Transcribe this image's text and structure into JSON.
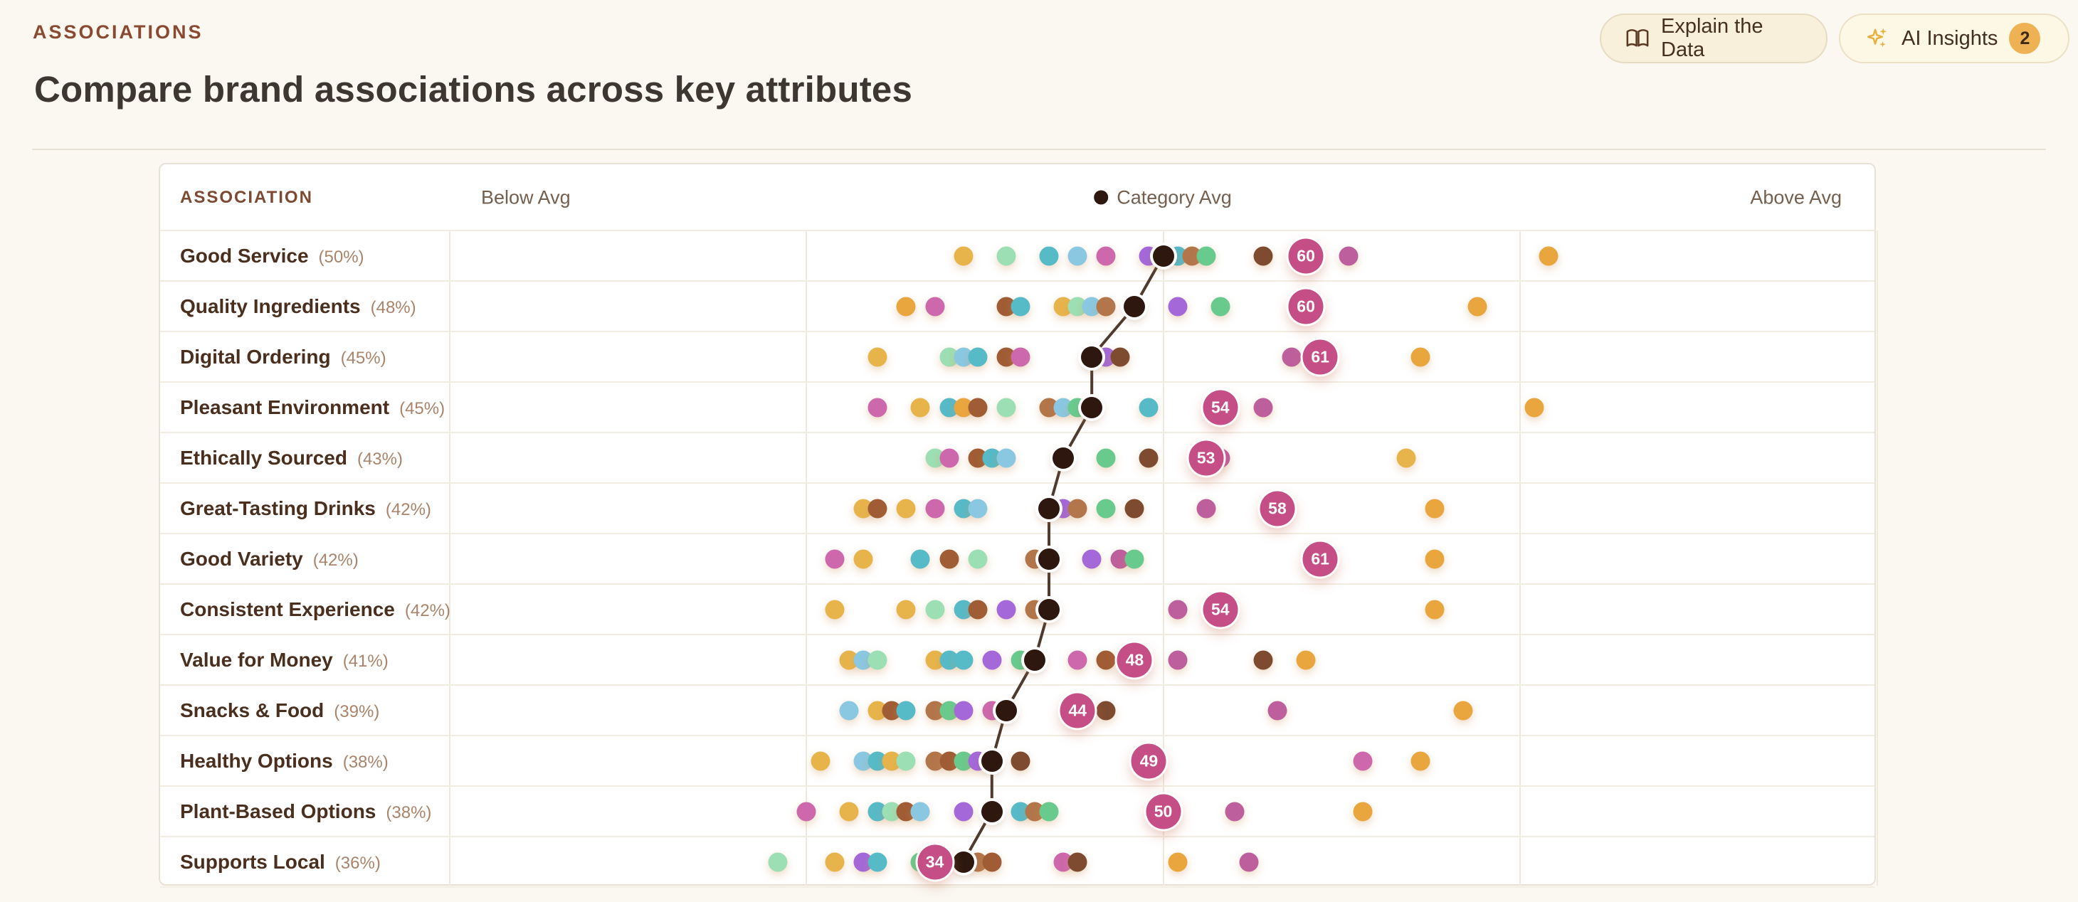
{
  "header": {
    "eyebrow": "ASSOCIATIONS",
    "title": "Compare brand associations across key attributes"
  },
  "toolbar": {
    "explain_button": {
      "label": "Explain the Data",
      "icon": "book-open-icon"
    },
    "ai_insights_button": {
      "label": "AI Insights",
      "icon": "sparkles-icon",
      "badge_count": "2"
    }
  },
  "chart_data": {
    "type": "scatter",
    "subtype": "dot-plot-by-row",
    "column_header": "ASSOCIATION",
    "axis_labels": {
      "left": "Below Avg",
      "center": "Category Avg",
      "right": "Above Avg"
    },
    "x_range": [
      0,
      100
    ],
    "gridlines_pct": [
      0,
      25,
      50,
      75,
      100
    ],
    "grid": true,
    "legend_position": "top-center",
    "palette": {
      "gold": {
        "hex": "#E7B44C",
        "pattern": "none"
      },
      "orange": {
        "hex": "#EAA63E",
        "pattern": "none"
      },
      "mint": {
        "hex": "#9DDFB4",
        "pattern": "none"
      },
      "teal": {
        "hex": "#57BAC7",
        "pattern": "none"
      },
      "sky": {
        "hex": "#8AC8E2",
        "pattern": "none"
      },
      "purple": {
        "hex": "#A468D9",
        "pattern": "none"
      },
      "green": {
        "hex": "#69CA8D",
        "pattern": "none"
      },
      "brown": {
        "hex": "#A05C35",
        "pattern": "none"
      },
      "brownSpeck": {
        "hex": "#B3754A",
        "pattern": "speck"
      },
      "darkbrown": {
        "hex": "#7E4B30",
        "pattern": "none"
      },
      "orchid": {
        "hex": "#CD68AC",
        "pattern": "dots"
      },
      "magenta": {
        "hex": "#BE5F9D",
        "pattern": "hatch"
      },
      "black": {
        "hex": "#2D170E",
        "pattern": "none"
      },
      "berry": {
        "hex": "#C44E85",
        "pattern": "none"
      }
    },
    "trend_line_color": "#4F3A2E",
    "rows": [
      {
        "label": "Good Service",
        "pct_label": "(50%)",
        "category_avg": 50,
        "focal": 60,
        "dots": [
          {
            "v": 36,
            "c": "gold"
          },
          {
            "v": 39,
            "c": "mint"
          },
          {
            "v": 42,
            "c": "teal"
          },
          {
            "v": 44,
            "c": "sky"
          },
          {
            "v": 46,
            "c": "orchid"
          },
          {
            "v": 49,
            "c": "purple"
          },
          {
            "v": 51,
            "c": "teal"
          },
          {
            "v": 52,
            "c": "brownSpeck"
          },
          {
            "v": 53,
            "c": "green"
          },
          {
            "v": 57,
            "c": "darkbrown"
          },
          {
            "v": 63,
            "c": "magenta"
          },
          {
            "v": 77,
            "c": "orange"
          }
        ]
      },
      {
        "label": "Quality Ingredients",
        "pct_label": "(48%)",
        "category_avg": 48,
        "focal": 60,
        "dots": [
          {
            "v": 32,
            "c": "orange"
          },
          {
            "v": 34,
            "c": "orchid"
          },
          {
            "v": 39,
            "c": "brown"
          },
          {
            "v": 40,
            "c": "teal"
          },
          {
            "v": 43,
            "c": "gold"
          },
          {
            "v": 44,
            "c": "mint"
          },
          {
            "v": 45,
            "c": "sky"
          },
          {
            "v": 46,
            "c": "brownSpeck"
          },
          {
            "v": 51,
            "c": "purple"
          },
          {
            "v": 54,
            "c": "green"
          },
          {
            "v": 72,
            "c": "orange"
          }
        ]
      },
      {
        "label": "Digital Ordering",
        "pct_label": "(45%)",
        "category_avg": 45,
        "focal": 61,
        "dots": [
          {
            "v": 30,
            "c": "gold"
          },
          {
            "v": 35,
            "c": "mint"
          },
          {
            "v": 36,
            "c": "sky"
          },
          {
            "v": 37,
            "c": "teal"
          },
          {
            "v": 39,
            "c": "brown"
          },
          {
            "v": 40,
            "c": "orchid"
          },
          {
            "v": 46,
            "c": "purple"
          },
          {
            "v": 47,
            "c": "darkbrown"
          },
          {
            "v": 59,
            "c": "magenta"
          },
          {
            "v": 68,
            "c": "orange"
          }
        ]
      },
      {
        "label": "Pleasant Environment",
        "pct_label": "(45%)",
        "category_avg": 45,
        "focal": 54,
        "dots": [
          {
            "v": 30,
            "c": "orchid"
          },
          {
            "v": 33,
            "c": "gold"
          },
          {
            "v": 35,
            "c": "teal"
          },
          {
            "v": 36,
            "c": "orange"
          },
          {
            "v": 37,
            "c": "brown"
          },
          {
            "v": 39,
            "c": "mint"
          },
          {
            "v": 42,
            "c": "brownSpeck"
          },
          {
            "v": 43,
            "c": "sky"
          },
          {
            "v": 44,
            "c": "green"
          },
          {
            "v": 49,
            "c": "teal"
          },
          {
            "v": 57,
            "c": "magenta"
          },
          {
            "v": 76,
            "c": "orange"
          }
        ]
      },
      {
        "label": "Ethically Sourced",
        "pct_label": "(43%)",
        "category_avg": 43,
        "focal": 53,
        "dots": [
          {
            "v": 34,
            "c": "mint"
          },
          {
            "v": 35,
            "c": "orchid"
          },
          {
            "v": 37,
            "c": "brown"
          },
          {
            "v": 38,
            "c": "teal"
          },
          {
            "v": 39,
            "c": "sky"
          },
          {
            "v": 46,
            "c": "green"
          },
          {
            "v": 49,
            "c": "darkbrown"
          },
          {
            "v": 54,
            "c": "magenta"
          },
          {
            "v": 67,
            "c": "gold"
          }
        ]
      },
      {
        "label": "Great-Tasting Drinks",
        "pct_label": "(42%)",
        "category_avg": 42,
        "focal": 58,
        "dots": [
          {
            "v": 29,
            "c": "gold"
          },
          {
            "v": 30,
            "c": "brown"
          },
          {
            "v": 32,
            "c": "gold"
          },
          {
            "v": 34,
            "c": "orchid"
          },
          {
            "v": 36,
            "c": "teal"
          },
          {
            "v": 37,
            "c": "sky"
          },
          {
            "v": 43,
            "c": "purple"
          },
          {
            "v": 44,
            "c": "brownSpeck"
          },
          {
            "v": 46,
            "c": "green"
          },
          {
            "v": 48,
            "c": "darkbrown"
          },
          {
            "v": 53,
            "c": "magenta"
          },
          {
            "v": 69,
            "c": "orange"
          }
        ]
      },
      {
        "label": "Good Variety",
        "pct_label": "(42%)",
        "category_avg": 42,
        "focal": 61,
        "dots": [
          {
            "v": 27,
            "c": "orchid"
          },
          {
            "v": 29,
            "c": "gold"
          },
          {
            "v": 33,
            "c": "teal"
          },
          {
            "v": 35,
            "c": "brown"
          },
          {
            "v": 37,
            "c": "mint"
          },
          {
            "v": 41,
            "c": "brownSpeck"
          },
          {
            "v": 45,
            "c": "purple"
          },
          {
            "v": 47,
            "c": "magenta"
          },
          {
            "v": 48,
            "c": "green"
          },
          {
            "v": 69,
            "c": "orange"
          }
        ]
      },
      {
        "label": "Consistent Experience",
        "pct_label": "(42%)",
        "category_avg": 42,
        "focal": 54,
        "dots": [
          {
            "v": 27,
            "c": "gold"
          },
          {
            "v": 32,
            "c": "gold"
          },
          {
            "v": 34,
            "c": "mint"
          },
          {
            "v": 36,
            "c": "teal"
          },
          {
            "v": 37,
            "c": "brown"
          },
          {
            "v": 39,
            "c": "purple"
          },
          {
            "v": 41,
            "c": "brownSpeck"
          },
          {
            "v": 51,
            "c": "magenta"
          },
          {
            "v": 69,
            "c": "orange"
          }
        ]
      },
      {
        "label": "Value for Money",
        "pct_label": "(41%)",
        "category_avg": 41,
        "focal": 48,
        "dots": [
          {
            "v": 28,
            "c": "gold"
          },
          {
            "v": 29,
            "c": "sky"
          },
          {
            "v": 30,
            "c": "mint"
          },
          {
            "v": 34,
            "c": "gold"
          },
          {
            "v": 35,
            "c": "teal"
          },
          {
            "v": 36,
            "c": "teal"
          },
          {
            "v": 38,
            "c": "purple"
          },
          {
            "v": 40,
            "c": "green"
          },
          {
            "v": 44,
            "c": "orchid"
          },
          {
            "v": 46,
            "c": "brown"
          },
          {
            "v": 51,
            "c": "magenta"
          },
          {
            "v": 57,
            "c": "darkbrown"
          },
          {
            "v": 60,
            "c": "orange"
          }
        ]
      },
      {
        "label": "Snacks & Food",
        "pct_label": "(39%)",
        "category_avg": 39,
        "focal": 44,
        "dots": [
          {
            "v": 28,
            "c": "sky"
          },
          {
            "v": 30,
            "c": "gold"
          },
          {
            "v": 31,
            "c": "brown"
          },
          {
            "v": 32,
            "c": "teal"
          },
          {
            "v": 34,
            "c": "brownSpeck"
          },
          {
            "v": 35,
            "c": "green"
          },
          {
            "v": 36,
            "c": "purple"
          },
          {
            "v": 38,
            "c": "orchid"
          },
          {
            "v": 46,
            "c": "darkbrown"
          },
          {
            "v": 58,
            "c": "magenta"
          },
          {
            "v": 71,
            "c": "orange"
          }
        ]
      },
      {
        "label": "Healthy Options",
        "pct_label": "(38%)",
        "category_avg": 38,
        "focal": 49,
        "dots": [
          {
            "v": 26,
            "c": "gold"
          },
          {
            "v": 29,
            "c": "sky"
          },
          {
            "v": 30,
            "c": "teal"
          },
          {
            "v": 31,
            "c": "gold"
          },
          {
            "v": 32,
            "c": "mint"
          },
          {
            "v": 34,
            "c": "brownSpeck"
          },
          {
            "v": 35,
            "c": "brown"
          },
          {
            "v": 36,
            "c": "green"
          },
          {
            "v": 37,
            "c": "purple"
          },
          {
            "v": 40,
            "c": "darkbrown"
          },
          {
            "v": 64,
            "c": "orchid"
          },
          {
            "v": 68,
            "c": "orange"
          }
        ]
      },
      {
        "label": "Plant-Based Options",
        "pct_label": "(38%)",
        "category_avg": 38,
        "focal": 50,
        "dots": [
          {
            "v": 25,
            "c": "orchid"
          },
          {
            "v": 28,
            "c": "gold"
          },
          {
            "v": 30,
            "c": "teal"
          },
          {
            "v": 31,
            "c": "mint"
          },
          {
            "v": 32,
            "c": "brown"
          },
          {
            "v": 33,
            "c": "sky"
          },
          {
            "v": 36,
            "c": "purple"
          },
          {
            "v": 40,
            "c": "teal"
          },
          {
            "v": 41,
            "c": "brownSpeck"
          },
          {
            "v": 42,
            "c": "green"
          },
          {
            "v": 55,
            "c": "magenta"
          },
          {
            "v": 64,
            "c": "orange"
          }
        ]
      },
      {
        "label": "Supports Local",
        "pct_label": "(36%)",
        "category_avg": 36,
        "focal": 34,
        "dots": [
          {
            "v": 23,
            "c": "mint"
          },
          {
            "v": 27,
            "c": "gold"
          },
          {
            "v": 29,
            "c": "purple"
          },
          {
            "v": 30,
            "c": "teal"
          },
          {
            "v": 33,
            "c": "green"
          },
          {
            "v": 37,
            "c": "brownSpeck"
          },
          {
            "v": 38,
            "c": "brown"
          },
          {
            "v": 43,
            "c": "orchid"
          },
          {
            "v": 44,
            "c": "darkbrown"
          },
          {
            "v": 51,
            "c": "orange"
          },
          {
            "v": 56,
            "c": "magenta"
          }
        ]
      }
    ]
  }
}
